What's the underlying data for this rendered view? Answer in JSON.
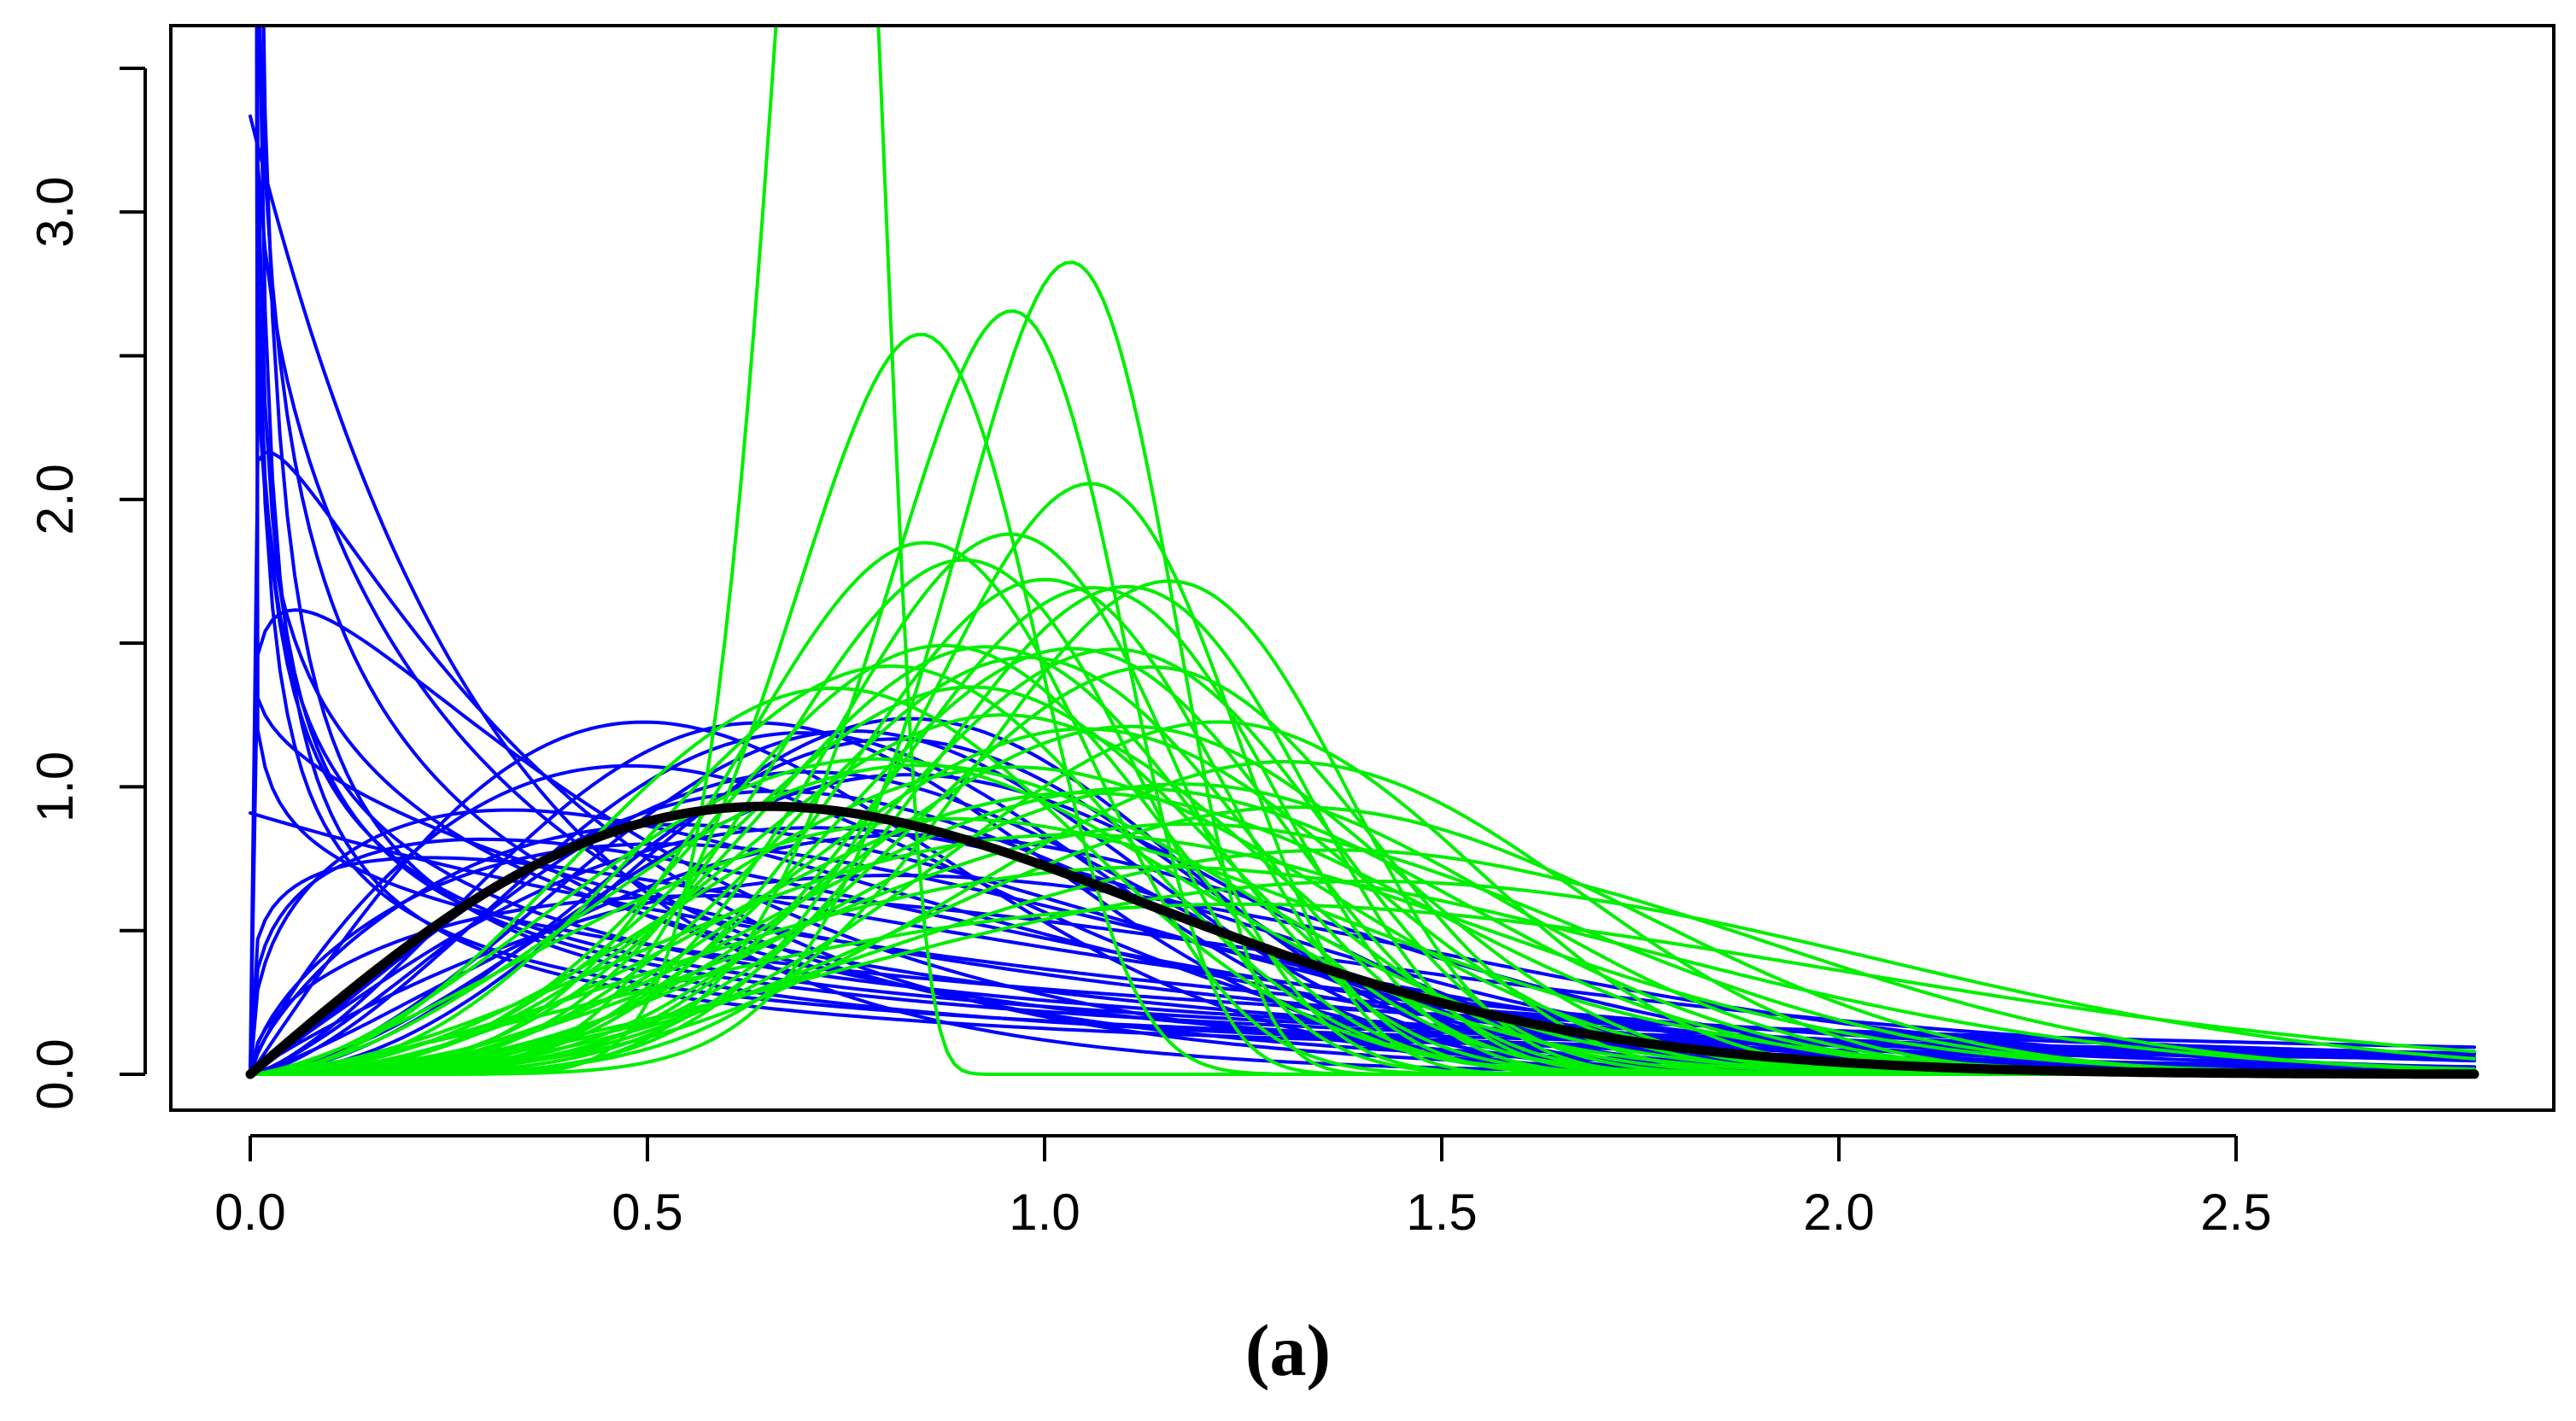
{
  "caption": "(a)",
  "chart_data": {
    "type": "line",
    "title": "",
    "xlabel": "",
    "ylabel": "",
    "xlim": [
      -0.1,
      2.9
    ],
    "ylim": [
      0.0,
      3.5
    ],
    "x_ticks": [
      0.0,
      0.5,
      1.0,
      1.5,
      2.0,
      2.5
    ],
    "x_tick_labels": [
      "0.0",
      "0.5",
      "1.0",
      "1.5",
      "2.0",
      "2.5"
    ],
    "y_ticks": [
      0.0,
      0.5,
      1.0,
      1.5,
      2.0,
      2.5,
      3.0,
      3.5
    ],
    "y_tick_labels": [
      "0.0",
      "",
      "1.0",
      "",
      "2.0",
      "",
      "3.0",
      ""
    ],
    "grid": false,
    "legend": "none",
    "x_range": [
      0.0,
      2.8
    ],
    "colors": {
      "group_a": "#0000ff",
      "group_b": "#00ee00",
      "reference": "#000000"
    },
    "blue_curves": [
      {
        "k": 0.45,
        "s": 1.9
      },
      {
        "k": 0.5,
        "s": 0.9
      },
      {
        "k": 0.55,
        "s": 2.2
      },
      {
        "k": 0.6,
        "s": 1.3
      },
      {
        "k": 0.65,
        "s": 1.3
      },
      {
        "k": 0.7,
        "s": 1.1
      },
      {
        "k": 0.75,
        "s": 0.5
      },
      {
        "k": 0.8,
        "s": 0.8
      },
      {
        "k": 0.85,
        "s": 1.5
      },
      {
        "k": 0.9,
        "s": 0.4
      },
      {
        "k": 0.95,
        "s": 0.9
      },
      {
        "k": 1.0,
        "s": 1.1
      },
      {
        "k": 1.0,
        "s": 0.3
      },
      {
        "k": 1.05,
        "s": 0.4
      },
      {
        "k": 1.1,
        "s": 0.5
      },
      {
        "k": 1.2,
        "s": 1.0
      },
      {
        "k": 1.3,
        "s": 0.9
      },
      {
        "k": 1.4,
        "s": 0.8
      },
      {
        "k": 1.5,
        "s": 1.2
      },
      {
        "k": 1.6,
        "s": 0.95
      },
      {
        "k": 1.7,
        "s": 0.9
      },
      {
        "k": 1.8,
        "s": 0.75
      },
      {
        "k": 1.9,
        "s": 1.2
      },
      {
        "k": 2.0,
        "s": 0.7
      },
      {
        "k": 2.0,
        "s": 1.0
      },
      {
        "k": 2.1,
        "s": 0.9
      },
      {
        "k": 2.2,
        "s": 1.1
      },
      {
        "k": 2.3,
        "s": 0.9
      },
      {
        "k": 2.4,
        "s": 0.8
      },
      {
        "k": 2.5,
        "s": 0.85
      },
      {
        "k": 2.6,
        "s": 1.0
      },
      {
        "k": 2.7,
        "s": 0.9
      },
      {
        "k": 2.8,
        "s": 0.95
      },
      {
        "k": 3.0,
        "s": 0.95
      }
    ],
    "green_curves": [
      {
        "k": 11.5,
        "s": 0.74
      },
      {
        "k": 8.0,
        "s": 1.05
      },
      {
        "k": 7.0,
        "s": 0.98
      },
      {
        "k": 6.0,
        "s": 0.87
      },
      {
        "k": 5.0,
        "s": 1.11
      },
      {
        "k": 6.0,
        "s": 1.09
      },
      {
        "k": 5.5,
        "s": 1.2
      },
      {
        "k": 4.5,
        "s": 1.15
      },
      {
        "k": 4.0,
        "s": 1.05
      },
      {
        "k": 3.5,
        "s": 1.45
      },
      {
        "k": 2.8,
        "s": 1.65
      },
      {
        "k": 3.0,
        "s": 1.1
      },
      {
        "k": 3.2,
        "s": 1.25
      },
      {
        "k": 3.5,
        "s": 1.0
      },
      {
        "k": 3.8,
        "s": 1.2
      },
      {
        "k": 4.2,
        "s": 1.3
      },
      {
        "k": 4.5,
        "s": 0.95
      },
      {
        "k": 5.0,
        "s": 1.0
      },
      {
        "k": 2.5,
        "s": 1.4
      },
      {
        "k": 2.7,
        "s": 1.0
      },
      {
        "k": 3.0,
        "s": 1.35
      },
      {
        "k": 3.3,
        "s": 0.9
      },
      {
        "k": 3.6,
        "s": 1.15
      },
      {
        "k": 4.0,
        "s": 1.4
      },
      {
        "k": 4.5,
        "s": 1.2
      },
      {
        "k": 2.4,
        "s": 1.1
      },
      {
        "k": 2.6,
        "s": 1.25
      },
      {
        "k": 2.9,
        "s": 0.85
      },
      {
        "k": 3.1,
        "s": 1.55
      },
      {
        "k": 3.4,
        "s": 1.05
      },
      {
        "k": 3.7,
        "s": 0.95
      },
      {
        "k": 4.3,
        "s": 1.1
      },
      {
        "k": 4.8,
        "s": 1.05
      },
      {
        "k": 5.2,
        "s": 1.15
      },
      {
        "k": 2.3,
        "s": 1.6
      },
      {
        "k": 2.6,
        "s": 0.95
      },
      {
        "k": 3.0,
        "s": 1.2
      },
      {
        "k": 3.4,
        "s": 1.3
      },
      {
        "k": 3.9,
        "s": 1.0
      },
      {
        "k": 4.4,
        "s": 0.9
      }
    ],
    "reference_curve": {
      "k": 2.0,
      "s": 0.92
    }
  }
}
